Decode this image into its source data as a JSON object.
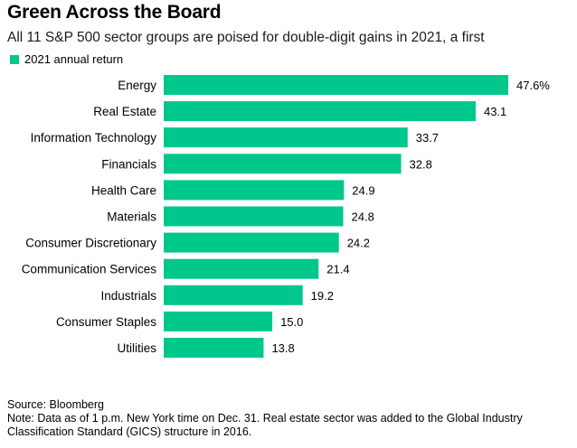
{
  "title": "Green Across the Board",
  "subtitle": "All 11 S&P 500 sector groups are poised for double-digit gains in 2021, a first",
  "legend": {
    "label": "2021 annual return",
    "color": "#00c88c"
  },
  "chart_data": {
    "type": "bar",
    "orientation": "horizontal",
    "categories": [
      "Energy",
      "Real Estate",
      "Information Technology",
      "Financials",
      "Health Care",
      "Materials",
      "Consumer Discretionary",
      "Communication Services",
      "Industrials",
      "Consumer Staples",
      "Utilities"
    ],
    "series": [
      {
        "name": "2021 annual return",
        "values": [
          47.6,
          43.1,
          33.7,
          32.8,
          24.9,
          24.8,
          24.2,
          21.4,
          19.2,
          15.0,
          13.8
        ],
        "color": "#00c88c"
      }
    ],
    "value_labels": [
      "47.6%",
      "43.1",
      "33.7",
      "32.8",
      "24.9",
      "24.8",
      "24.2",
      "21.4",
      "19.2",
      "15.0",
      "13.8"
    ],
    "xlim": [
      0,
      47.6
    ],
    "grid": false
  },
  "footer": {
    "source": "Source: Bloomberg",
    "note": "Note: Data as of 1 p.m. New York time on Dec. 31. Real estate sector was added to the Global Industry Classification Standard (GICS) structure in 2016."
  }
}
